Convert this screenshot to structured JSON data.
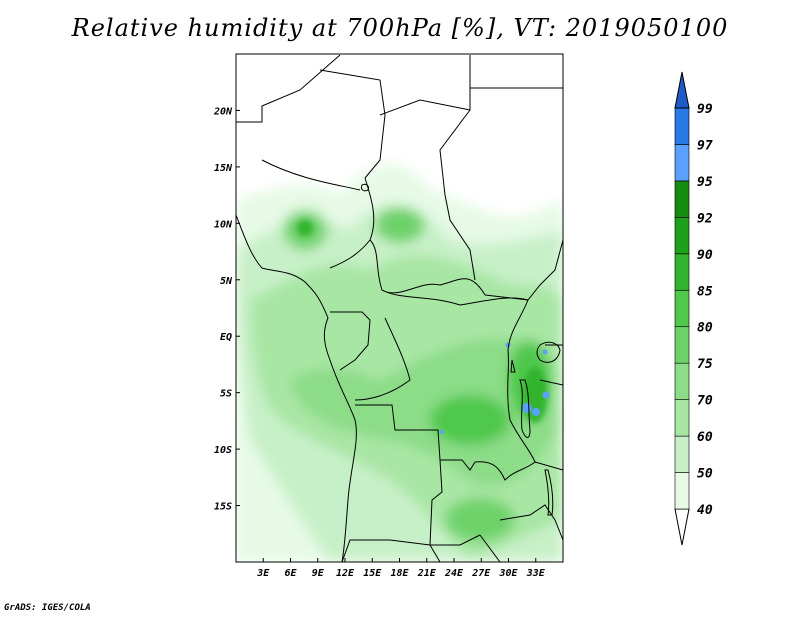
{
  "title": "Relative humidity at 700hPa [%], VT: 2019050100",
  "footer": "GrADS: IGES/COLA",
  "map": {
    "lon_range": [
      0,
      36
    ],
    "lat_range": [
      -20,
      25
    ],
    "lon_ticks": [
      "3E",
      "6E",
      "9E",
      "12E",
      "15E",
      "18E",
      "21E",
      "24E",
      "27E",
      "30E",
      "33E"
    ],
    "lat_ticks": [
      "20N",
      "15N",
      "10N",
      "5N",
      "EQ",
      "5S",
      "10S",
      "15S"
    ]
  },
  "colorbar": {
    "levels": [
      "40",
      "50",
      "60",
      "70",
      "75",
      "80",
      "85",
      "90",
      "92",
      "95",
      "97",
      "99"
    ],
    "colors": [
      "#ffffff",
      "#e6fae6",
      "#c8f0c8",
      "#a8e6a4",
      "#8cdc88",
      "#6ed26a",
      "#50c84c",
      "#32b42e",
      "#1ea01a",
      "#148c10",
      "#5aa0ff",
      "#2878e6",
      "#1e5ac8"
    ]
  }
}
